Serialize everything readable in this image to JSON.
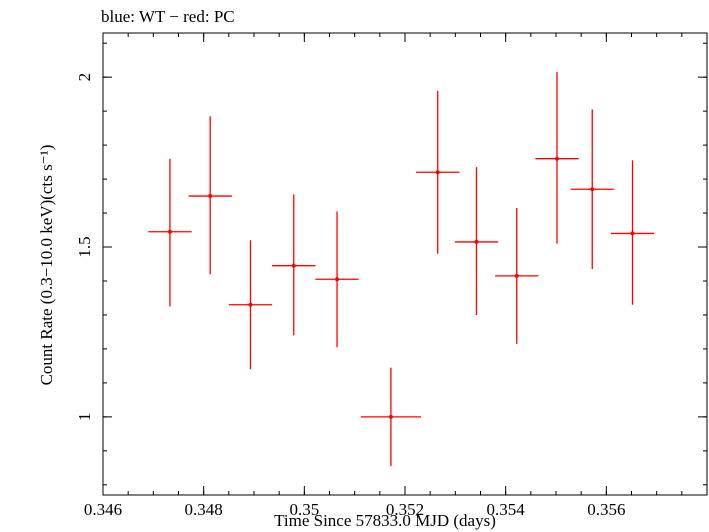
{
  "chart_data": {
    "type": "scatter",
    "title": "blue: WT − red: PC",
    "xlabel": "Time Since 57833.0 MJD (days)",
    "ylabel": "Count Rate (0.3−10.0 keV)(cts s⁻¹)",
    "xlim": [
      0.346,
      0.358
    ],
    "ylim": [
      0.77,
      2.13
    ],
    "xticks": [
      0.346,
      0.348,
      0.35,
      0.352,
      0.354,
      0.356
    ],
    "xtick_labels": [
      "0.346",
      "0.348",
      "0.35",
      "0.352",
      "0.354",
      "0.356"
    ],
    "yticks": [
      1,
      1.5,
      2
    ],
    "ytick_labels": [
      "1",
      "1.5",
      "2"
    ],
    "grid": false,
    "series": [
      {
        "color": "#ff0000",
        "points": [
          {
            "x": 0.34733,
            "xerr": 0.00043,
            "y": 1.545,
            "yerr_low": 0.22,
            "yerr_high": 0.215
          },
          {
            "x": 0.34813,
            "xerr": 0.00043,
            "y": 1.65,
            "yerr_low": 0.23,
            "yerr_high": 0.235
          },
          {
            "x": 0.34893,
            "xerr": 0.00043,
            "y": 1.33,
            "yerr_low": 0.19,
            "yerr_high": 0.19
          },
          {
            "x": 0.34979,
            "xerr": 0.00043,
            "y": 1.445,
            "yerr_low": 0.205,
            "yerr_high": 0.21
          },
          {
            "x": 0.35065,
            "xerr": 0.00043,
            "y": 1.405,
            "yerr_low": 0.2,
            "yerr_high": 0.2
          },
          {
            "x": 0.35172,
            "xerr": 0.0006,
            "y": 1.0,
            "yerr_low": 0.145,
            "yerr_high": 0.145
          },
          {
            "x": 0.35265,
            "xerr": 0.00043,
            "y": 1.72,
            "yerr_low": 0.24,
            "yerr_high": 0.24
          },
          {
            "x": 0.35342,
            "xerr": 0.00043,
            "y": 1.515,
            "yerr_low": 0.215,
            "yerr_high": 0.22
          },
          {
            "x": 0.35422,
            "xerr": 0.00043,
            "y": 1.415,
            "yerr_low": 0.2,
            "yerr_high": 0.2
          },
          {
            "x": 0.35502,
            "xerr": 0.00043,
            "y": 1.76,
            "yerr_low": 0.25,
            "yerr_high": 0.255
          },
          {
            "x": 0.35572,
            "xerr": 0.00043,
            "y": 1.67,
            "yerr_low": 0.235,
            "yerr_high": 0.235
          },
          {
            "x": 0.35652,
            "xerr": 0.00043,
            "y": 1.54,
            "yerr_low": 0.21,
            "yerr_high": 0.215
          }
        ]
      }
    ]
  }
}
